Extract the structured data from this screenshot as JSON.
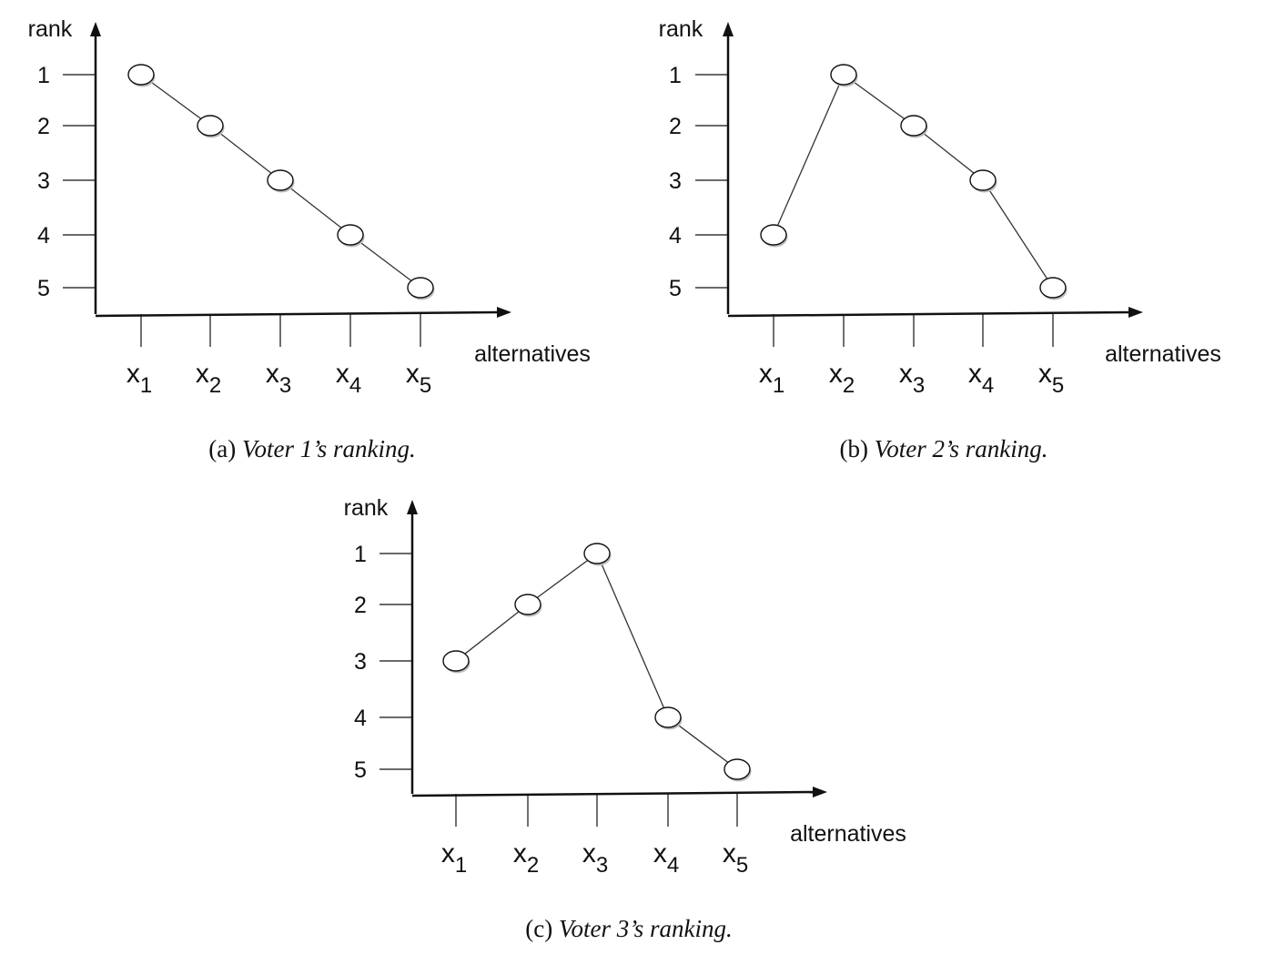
{
  "chart_data": [
    {
      "type": "line",
      "ylabel": "rank",
      "xlabel": "alternatives",
      "categories": [
        "x1",
        "x2",
        "x3",
        "x4",
        "x5"
      ],
      "y_ticks": [
        1,
        2,
        3,
        4,
        5
      ],
      "series": [
        {
          "values": [
            1,
            2,
            3,
            4,
            5
          ]
        }
      ],
      "caption_label": "(a)",
      "caption_text": "Voter 1’s ranking."
    },
    {
      "type": "line",
      "ylabel": "rank",
      "xlabel": "alternatives",
      "categories": [
        "x1",
        "x2",
        "x3",
        "x4",
        "x5"
      ],
      "y_ticks": [
        1,
        2,
        3,
        4,
        5
      ],
      "series": [
        {
          "values": [
            4,
            1,
            2,
            3,
            5
          ]
        }
      ],
      "caption_label": "(b)",
      "caption_text": "Voter 2’s ranking."
    },
    {
      "type": "line",
      "ylabel": "rank",
      "xlabel": "alternatives",
      "categories": [
        "x1",
        "x2",
        "x3",
        "x4",
        "x5"
      ],
      "y_ticks": [
        1,
        2,
        3,
        4,
        5
      ],
      "series": [
        {
          "values": [
            3,
            2,
            1,
            4,
            5
          ]
        }
      ],
      "caption_label": "(c)",
      "caption_text": "Voter 3’s ranking."
    }
  ]
}
